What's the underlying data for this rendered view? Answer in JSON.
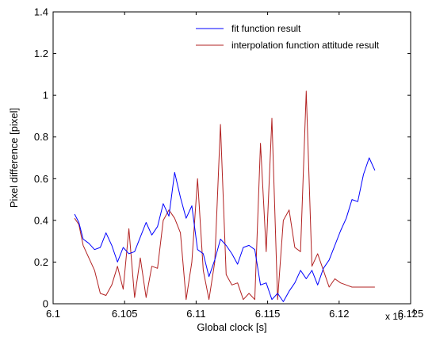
{
  "chart_data": {
    "type": "line",
    "title": "",
    "xlabel": "Global clock [s]",
    "ylabel": "Pixel difference [pixel]",
    "x_exponent_label": "x 10",
    "x_exponent_power": "4",
    "xlim": [
      61000,
      61250
    ],
    "ylim": [
      0,
      1.4
    ],
    "x_tick_values": [
      61000,
      61050,
      61100,
      61150,
      61200,
      61250
    ],
    "x_tick_labels": [
      "6.1",
      "6.105",
      "6.11",
      "6.115",
      "6.12",
      "6.125"
    ],
    "y_tick_values": [
      0,
      0.2,
      0.4,
      0.6,
      0.8,
      1,
      1.2,
      1.4
    ],
    "y_tick_labels": [
      "0",
      "0.2",
      "0.4",
      "0.6",
      "0.8",
      "1",
      "1.2",
      "1.4"
    ],
    "grid": false,
    "legend_position": "top-right",
    "series": [
      {
        "name": "fit function result",
        "color": "#0000ff",
        "x": [
          61015,
          61018,
          61021,
          61025,
          61029,
          61033,
          61037,
          61041,
          61045,
          61049,
          61053,
          61057,
          61061,
          61065,
          61069,
          61073,
          61077,
          61081,
          61085,
          61089,
          61093,
          61097,
          61101,
          61105,
          61109,
          61113,
          61117,
          61121,
          61125,
          61129,
          61133,
          61137,
          61141,
          61145,
          61149,
          61153,
          61157,
          61161,
          61165,
          61169,
          61173,
          61177,
          61181,
          61185,
          61189,
          61193,
          61197,
          61201,
          61205,
          61209,
          61213,
          61217,
          61221,
          61225
        ],
        "y": [
          0.43,
          0.39,
          0.31,
          0.29,
          0.26,
          0.27,
          0.34,
          0.28,
          0.2,
          0.27,
          0.24,
          0.25,
          0.32,
          0.39,
          0.33,
          0.37,
          0.48,
          0.42,
          0.63,
          0.51,
          0.41,
          0.47,
          0.26,
          0.24,
          0.13,
          0.21,
          0.31,
          0.28,
          0.24,
          0.19,
          0.27,
          0.28,
          0.26,
          0.09,
          0.1,
          0.02,
          0.05,
          0.01,
          0.06,
          0.1,
          0.16,
          0.12,
          0.16,
          0.09,
          0.17,
          0.21,
          0.28,
          0.35,
          0.41,
          0.5,
          0.49,
          0.62,
          0.7,
          0.64
        ]
      },
      {
        "name": "interpolation function attitude result",
        "color": "#b22222",
        "x": [
          61015,
          61018,
          61021,
          61025,
          61029,
          61033,
          61037,
          61041,
          61045,
          61049,
          61053,
          61057,
          61061,
          61065,
          61069,
          61073,
          61077,
          61081,
          61085,
          61089,
          61093,
          61097,
          61101,
          61105,
          61109,
          61113,
          61117,
          61121,
          61125,
          61129,
          61133,
          61137,
          61141,
          61145,
          61149,
          61153,
          61157,
          61161,
          61165,
          61169,
          61173,
          61177,
          61181,
          61185,
          61189,
          61193,
          61197,
          61201,
          61205,
          61209,
          61213,
          61217,
          61221,
          61225
        ],
        "y": [
          0.41,
          0.38,
          0.28,
          0.22,
          0.16,
          0.05,
          0.04,
          0.09,
          0.18,
          0.07,
          0.36,
          0.03,
          0.22,
          0.03,
          0.18,
          0.17,
          0.4,
          0.45,
          0.41,
          0.34,
          0.02,
          0.2,
          0.6,
          0.16,
          0.02,
          0.2,
          0.86,
          0.14,
          0.09,
          0.1,
          0.02,
          0.05,
          0.02,
          0.77,
          0.25,
          0.89,
          0.02,
          0.4,
          0.45,
          0.27,
          0.25,
          1.02,
          0.18,
          0.24,
          0.16,
          0.08,
          0.12,
          0.1,
          0.09,
          0.08,
          0.08,
          0.08,
          0.08,
          0.08
        ]
      }
    ]
  }
}
